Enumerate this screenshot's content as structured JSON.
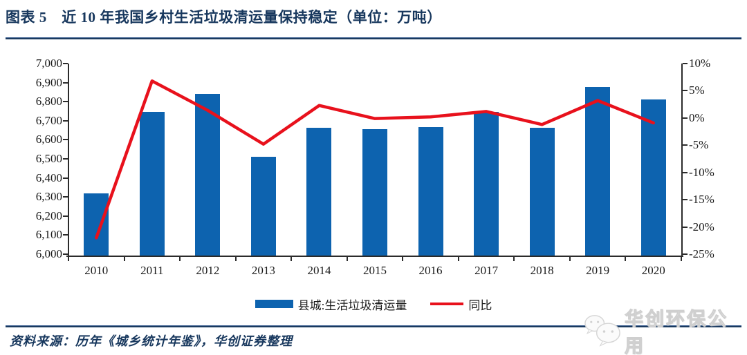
{
  "figure": {
    "title": "图表 5　近 10 年我国乡村生活垃圾清运量保持稳定（单位：万吨）",
    "source": "资料来源：历年《城乡统计年鉴》，华创证券整理",
    "watermark": "华创环保公用"
  },
  "colors": {
    "bar_blue": "#0d63af",
    "line_red": "#e8111c",
    "navy": "#17375d",
    "axis": "#2b2b2b"
  },
  "chart_data": {
    "type": "bar",
    "subtype": "bar-line combo with dual y axes",
    "title": "近10年我国乡村生活垃圾清运量保持稳定（单位：万吨）",
    "categories": [
      "2010",
      "2011",
      "2012",
      "2013",
      "2014",
      "2015",
      "2016",
      "2017",
      "2018",
      "2019",
      "2020"
    ],
    "series": [
      {
        "name": "县城:生活垃圾清运量",
        "type": "bar",
        "axis": "left",
        "unit": "万吨",
        "values": [
          6318,
          6745,
          6840,
          6510,
          6662,
          6657,
          6668,
          6748,
          6664,
          6876,
          6812
        ]
      },
      {
        "name": "同比",
        "type": "line",
        "axis": "right",
        "unit": "%",
        "values": [
          -22,
          6.8,
          1.4,
          -4.8,
          2.3,
          -0.1,
          0.2,
          1.2,
          -1.2,
          3.2,
          -0.9
        ]
      }
    ],
    "left_axis": {
      "min": 6000,
      "max": 7000,
      "step": 100,
      "format": "thousands"
    },
    "right_axis": {
      "min": -25,
      "max": 10,
      "step": 5,
      "format": "percent"
    },
    "grid": false,
    "legend_position": "bottom"
  }
}
